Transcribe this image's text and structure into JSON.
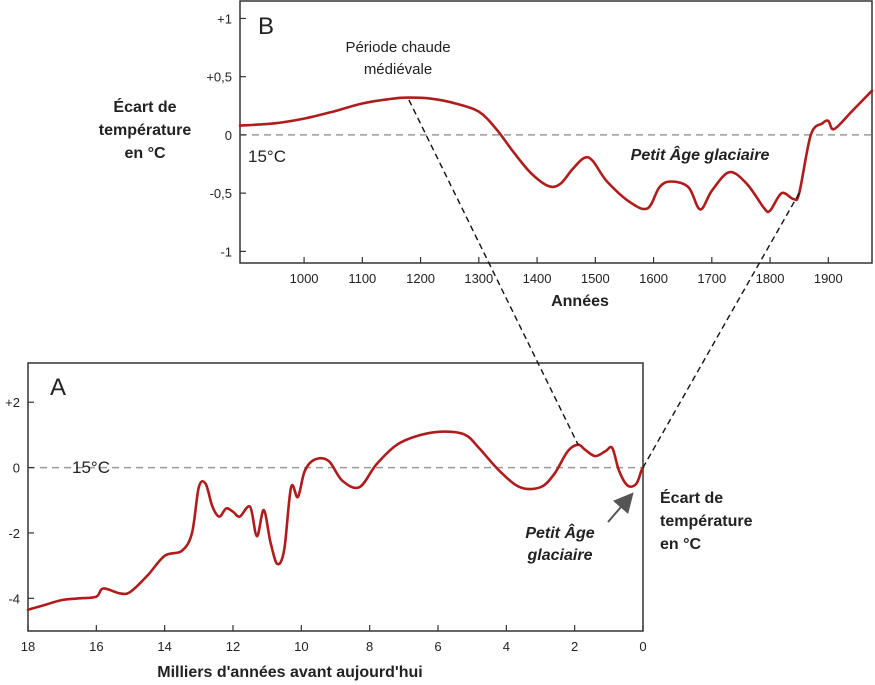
{
  "colors": {
    "curve": "#b01c1c",
    "frame": "#333333",
    "dash": "#9a9a9a",
    "link": "#111111"
  },
  "chart_data": [
    {
      "type": "line",
      "panel": "B",
      "xlabel": "Années",
      "ylabel_lines": [
        "Écart de",
        "température",
        "en °C"
      ],
      "ref_label": "15°C",
      "xlim": [
        890,
        1975
      ],
      "ylim": [
        -1.1,
        1.15
      ],
      "xticks": [
        1000,
        1100,
        1200,
        1300,
        1400,
        1500,
        1600,
        1700,
        1800,
        1900
      ],
      "yticks": [
        {
          "value": 1,
          "label": "+1"
        },
        {
          "value": 0.5,
          "label": "+0,5"
        },
        {
          "value": 0,
          "label": "0"
        },
        {
          "value": -0.5,
          "label": "-0,5"
        },
        {
          "value": -1,
          "label": "-1"
        }
      ],
      "annotations": {
        "warm_line1": "Période chaude",
        "warm_line2": "médiévale",
        "lia": "Petit Âge glaciaire"
      },
      "series": [
        {
          "x": [
            890,
            950,
            1000,
            1050,
            1100,
            1150,
            1180,
            1220,
            1260,
            1300,
            1330,
            1360,
            1390,
            1420,
            1440,
            1460,
            1480,
            1495,
            1520,
            1560,
            1590,
            1610,
            1630,
            1660,
            1680,
            1700,
            1730,
            1760,
            1790,
            1800,
            1820,
            1840,
            1850,
            1870,
            1890,
            1900,
            1910,
            1940,
            1975
          ],
          "y": [
            0.08,
            0.1,
            0.14,
            0.2,
            0.27,
            0.31,
            0.32,
            0.31,
            0.27,
            0.2,
            0.05,
            -0.15,
            -0.33,
            -0.44,
            -0.42,
            -0.3,
            -0.2,
            -0.22,
            -0.4,
            -0.58,
            -0.63,
            -0.45,
            -0.4,
            -0.45,
            -0.64,
            -0.48,
            -0.32,
            -0.42,
            -0.63,
            -0.65,
            -0.5,
            -0.55,
            -0.5,
            0,
            0.1,
            0.12,
            0.05,
            0.2,
            0.38
          ]
        }
      ]
    },
    {
      "type": "line",
      "panel": "A",
      "xlabel": "Milliers d'années avant aujourd'hui",
      "ylabel_lines": [
        "Écart de",
        "température",
        "en °C"
      ],
      "ref_label": "15°C",
      "xlim": [
        18,
        0
      ],
      "ylim": [
        -5,
        3.2
      ],
      "xticks": [
        18,
        16,
        14,
        12,
        10,
        8,
        6,
        4,
        2,
        0
      ],
      "yticks": [
        {
          "value": 2,
          "label": "+2"
        },
        {
          "value": 0,
          "label": "0"
        },
        {
          "value": -2,
          "label": "-2"
        },
        {
          "value": -4,
          "label": "-4"
        }
      ],
      "annotations": {
        "lia_line1": "Petit Âge",
        "lia_line2": "glaciaire"
      },
      "series": [
        {
          "x": [
            18,
            17.5,
            17,
            16.5,
            16,
            15.8,
            15.3,
            15,
            14.5,
            14,
            13.5,
            13.2,
            13,
            12.8,
            12.6,
            12.4,
            12.2,
            12.0,
            11.8,
            11.5,
            11.3,
            11.1,
            10.9,
            10.7,
            10.5,
            10.3,
            10.1,
            9.9,
            9.6,
            9.2,
            8.8,
            8.3,
            7.8,
            7.2,
            6.5,
            5.8,
            5.2,
            4.8,
            4.2,
            3.6,
            3.0,
            2.6,
            2.2,
            1.9,
            1.7,
            1.4,
            1.1,
            0.9,
            0.7,
            0.45,
            0.2,
            0.05,
            0
          ],
          "y": [
            -4.35,
            -4.2,
            -4.05,
            -4.0,
            -3.95,
            -3.7,
            -3.85,
            -3.8,
            -3.3,
            -2.7,
            -2.55,
            -2.0,
            -0.6,
            -0.5,
            -1.2,
            -1.5,
            -1.25,
            -1.35,
            -1.5,
            -1.2,
            -2.1,
            -1.3,
            -2.3,
            -2.95,
            -2.5,
            -0.6,
            -0.9,
            -0.1,
            0.25,
            0.2,
            -0.4,
            -0.6,
            0.1,
            0.7,
            1.0,
            1.1,
            1.0,
            0.6,
            -0.1,
            -0.6,
            -0.6,
            -0.2,
            0.5,
            0.7,
            0.55,
            0.35,
            0.5,
            0.6,
            -0.1,
            -0.55,
            -0.5,
            -0.1,
            0
          ]
        }
      ]
    }
  ]
}
